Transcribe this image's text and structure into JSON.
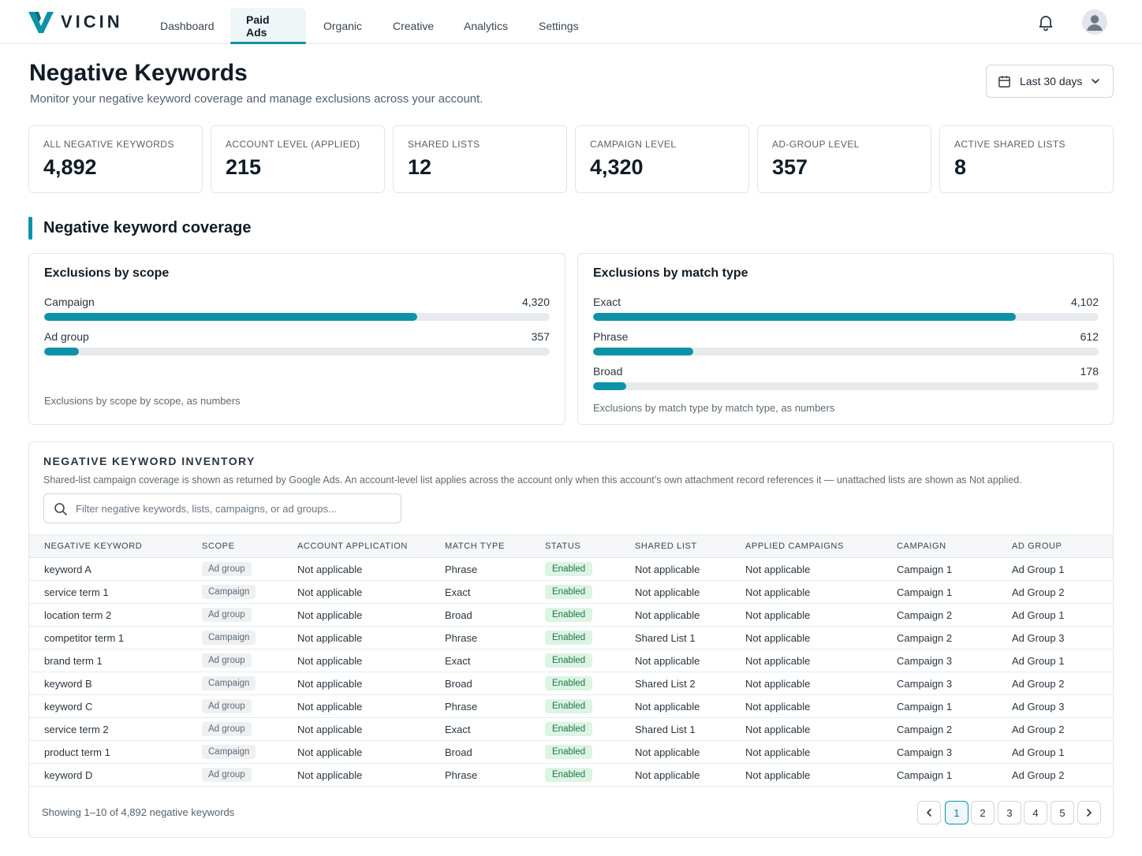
{
  "brand": {
    "name": "VICIN"
  },
  "nav": {
    "tabs": [
      {
        "label": "Dashboard"
      },
      {
        "label": "Paid Ads"
      },
      {
        "label": "Organic"
      },
      {
        "label": "Creative"
      },
      {
        "label": "Analytics"
      },
      {
        "label": "Settings"
      }
    ],
    "active_tab": "Paid Ads"
  },
  "header": {
    "title": "Negative Keywords",
    "subtitle": "Monitor your negative keyword coverage and manage exclusions across your account.",
    "date_range": "Last 30 days"
  },
  "stats": [
    {
      "label": "ALL NEGATIVE KEYWORDS",
      "value": "4,892"
    },
    {
      "label": "ACCOUNT LEVEL (APPLIED)",
      "value": "215"
    },
    {
      "label": "SHARED LISTS",
      "value": "12"
    },
    {
      "label": "CAMPAIGN LEVEL",
      "value": "4,320"
    },
    {
      "label": "AD-GROUP LEVEL",
      "value": "357"
    },
    {
      "label": "ACTIVE SHARED LISTS",
      "value": "8"
    }
  ],
  "coverage": {
    "section_title": "Negative keyword coverage",
    "scope_card": {
      "title": "Exclusions by scope",
      "rows": [
        {
          "label": "Campaign",
          "value_text": "4,320",
          "fill_fraction": 0.738
        },
        {
          "label": "Ad group",
          "value_text": "357",
          "fill_fraction": 0.069
        }
      ],
      "caption": "Exclusions by scope by scope, as numbers"
    },
    "match_card": {
      "title": "Exclusions by match type",
      "rows": [
        {
          "label": "Exact",
          "value_text": "4,102",
          "fill_fraction": 0.836
        },
        {
          "label": "Phrase",
          "value_text": "612",
          "fill_fraction": 0.198
        },
        {
          "label": "Broad",
          "value_text": "178",
          "fill_fraction": 0.065
        }
      ],
      "caption": "Exclusions by match type by match type, as numbers"
    }
  },
  "inventory": {
    "title": "NEGATIVE KEYWORD INVENTORY",
    "note": "Shared-list campaign coverage is shown as returned by Google Ads. An account-level list applies across the account only when this account’s own attachment record references it — unattached lists are shown as Not applied.",
    "search_placeholder": "Filter negative keywords, lists, campaigns, or ad groups...",
    "columns": [
      "NEGATIVE KEYWORD",
      "SCOPE",
      "ACCOUNT APPLICATION",
      "MATCH TYPE",
      "STATUS",
      "SHARED LIST",
      "APPLIED CAMPAIGNS",
      "CAMPAIGN",
      "AD GROUP"
    ],
    "rows": [
      [
        "keyword A",
        "Ad group",
        "Not applicable",
        "Phrase",
        "Enabled",
        "Not applicable",
        "Not applicable",
        "Campaign 1",
        "Ad Group 1"
      ],
      [
        "service term 1",
        "Campaign",
        "Not applicable",
        "Exact",
        "Enabled",
        "Not applicable",
        "Not applicable",
        "Campaign 1",
        "Ad Group 2"
      ],
      [
        "location term 2",
        "Ad group",
        "Not applicable",
        "Broad",
        "Enabled",
        "Not applicable",
        "Not applicable",
        "Campaign 2",
        "Ad Group 1"
      ],
      [
        "competitor term 1",
        "Campaign",
        "Not applicable",
        "Phrase",
        "Enabled",
        "Shared List 1",
        "Not applicable",
        "Campaign 2",
        "Ad Group 3"
      ],
      [
        "brand term 1",
        "Ad group",
        "Not applicable",
        "Exact",
        "Enabled",
        "Not applicable",
        "Not applicable",
        "Campaign 3",
        "Ad Group 1"
      ],
      [
        "keyword B",
        "Campaign",
        "Not applicable",
        "Broad",
        "Enabled",
        "Shared List 2",
        "Not applicable",
        "Campaign 3",
        "Ad Group 2"
      ],
      [
        "keyword C",
        "Ad group",
        "Not applicable",
        "Phrase",
        "Enabled",
        "Not applicable",
        "Not applicable",
        "Campaign 1",
        "Ad Group 3"
      ],
      [
        "service term 2",
        "Ad group",
        "Not applicable",
        "Exact",
        "Enabled",
        "Shared List 1",
        "Not applicable",
        "Campaign 2",
        "Ad Group 2"
      ],
      [
        "product term 1",
        "Campaign",
        "Not applicable",
        "Broad",
        "Enabled",
        "Not applicable",
        "Not applicable",
        "Campaign 3",
        "Ad Group 1"
      ],
      [
        "keyword D",
        "Ad group",
        "Not applicable",
        "Phrase",
        "Enabled",
        "Not applicable",
        "Not applicable",
        "Campaign 1",
        "Ad Group 2"
      ]
    ],
    "showing": "Showing 1–10 of 4,892 negative keywords",
    "pages": [
      "1",
      "2",
      "3",
      "4",
      "5"
    ],
    "current_page": "1"
  },
  "icons": {
    "notifications": "bell-icon",
    "avatar": "user-icon",
    "date": "calendar-icon",
    "dropdown": "chevron-down-icon",
    "search": "search-icon",
    "prev": "chevron-left-icon",
    "next": "chevron-right-icon"
  },
  "colors": {
    "accent": "#0e93a6",
    "status_enabled_bg": "#dcf3e5",
    "status_enabled_text": "#1b7a43"
  }
}
